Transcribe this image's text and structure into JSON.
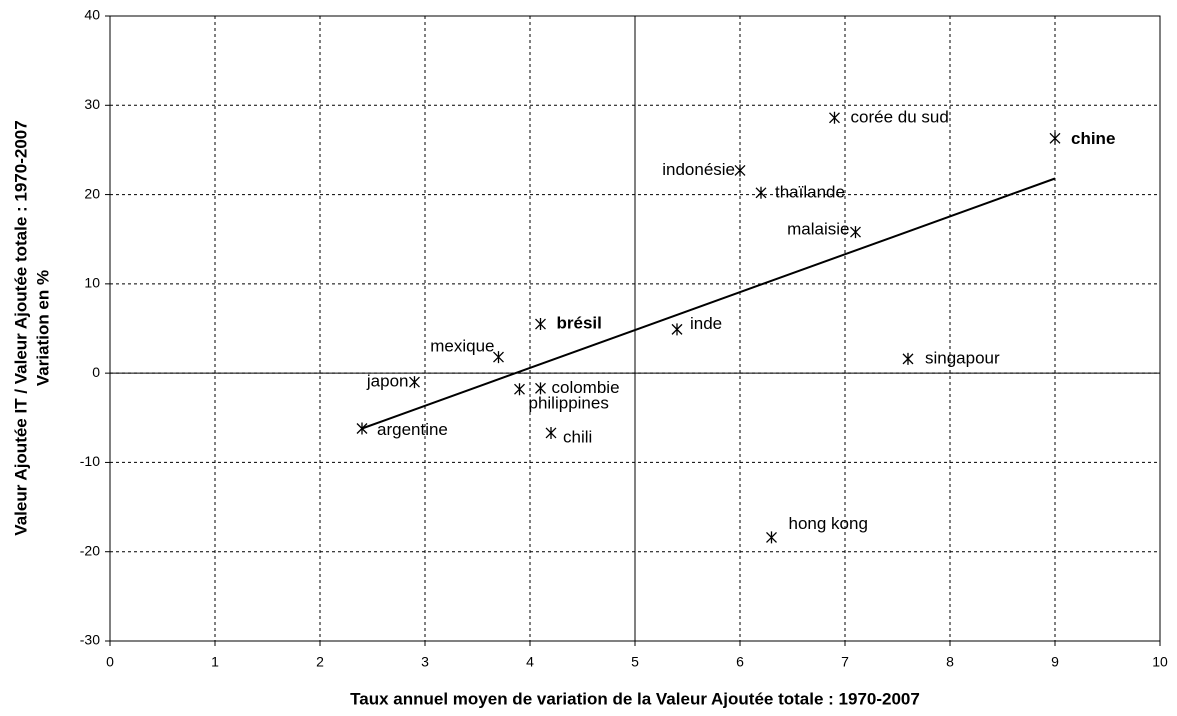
{
  "chart_data": {
    "type": "scatter",
    "x_label": "Taux annuel moyen de variation de la Valeur Ajoutée totale : 1970-2007",
    "y_label": [
      "Valeur Ajoutée  IT / Valeur Ajoutée totale : 1970-2007",
      "Variation en %"
    ],
    "labels": [
      "argentine",
      "japon",
      "mexique",
      "philippines",
      "colombie",
      "brésil",
      "chili",
      "inde",
      "indonésie",
      "thaïlande",
      "hong kong",
      "corée du sud",
      "malaisie",
      "singapour",
      "chine"
    ],
    "bold": [
      false,
      false,
      false,
      false,
      false,
      true,
      false,
      false,
      false,
      false,
      false,
      false,
      false,
      false,
      true
    ],
    "x": [
      2.4,
      2.9,
      3.7,
      3.9,
      4.1,
      4.1,
      4.2,
      5.4,
      6.0,
      6.2,
      6.3,
      6.9,
      7.1,
      7.6,
      9.0
    ],
    "values": [
      -6.2,
      -1.0,
      1.8,
      -1.8,
      -1.7,
      5.5,
      -6.7,
      4.9,
      22.7,
      20.2,
      -18.4,
      28.6,
      15.8,
      1.6,
      26.3
    ],
    "trendline": {
      "x": [
        2.4,
        9.0
      ],
      "y": [
        -6.2,
        21.8
      ]
    },
    "color": "#000000",
    "xlim": [
      0,
      10
    ],
    "xticks": [
      0,
      1,
      2,
      3,
      4,
      5,
      6,
      7,
      8,
      9,
      10
    ],
    "ylim": [
      -30,
      40
    ],
    "yticks": [
      -30,
      -20,
      -10,
      0,
      10,
      20,
      30,
      40
    ],
    "grid": true
  }
}
